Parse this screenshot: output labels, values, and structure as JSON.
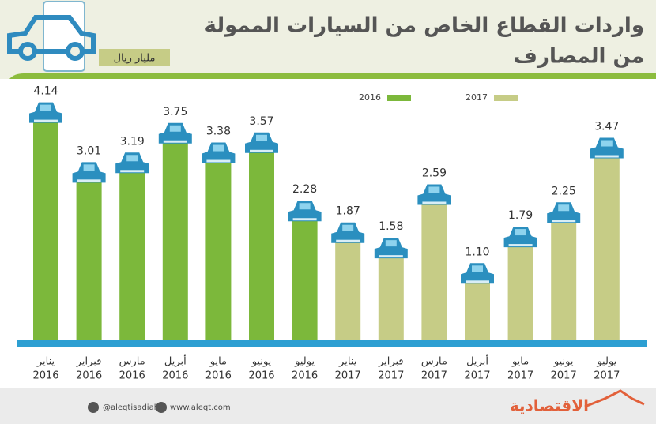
{
  "chart_data": {
    "type": "bar",
    "title": [
      "واردات القطاع الخاص من السيارات الممولة",
      "من المصارف"
    ],
    "subtitle": "مليار ريال",
    "categories": [
      [
        "يناير",
        "2016"
      ],
      [
        "فبراير",
        "2016"
      ],
      [
        "مارس",
        "2016"
      ],
      [
        "أبريل",
        "2016"
      ],
      [
        "مايو",
        "2016"
      ],
      [
        "يونيو",
        "2016"
      ],
      [
        "يوليو",
        "2016"
      ],
      [
        "يناير",
        "2017"
      ],
      [
        "فبراير",
        "2017"
      ],
      [
        "مارس",
        "2017"
      ],
      [
        "أبريل",
        "2017"
      ],
      [
        "مايو",
        "2017"
      ],
      [
        "يونيو",
        "2017"
      ],
      [
        "يوليو",
        "2017"
      ]
    ],
    "series": [
      {
        "name": "2016",
        "color": "#7cb83b",
        "values": [
          4.14,
          3.01,
          3.19,
          3.75,
          3.38,
          3.57,
          2.28,
          null,
          null,
          null,
          null,
          null,
          null,
          null
        ],
        "value_labels": [
          "4.14",
          "3.01",
          "3.19",
          "3.75",
          "3.38",
          "3.57",
          "2.28",
          null,
          null,
          null,
          null,
          null,
          null,
          null
        ]
      },
      {
        "name": "2017",
        "color": "#c6cc86",
        "values": [
          null,
          null,
          null,
          null,
          null,
          null,
          null,
          1.87,
          1.58,
          2.59,
          1.1,
          1.79,
          2.25,
          3.47
        ],
        "value_labels": [
          null,
          null,
          null,
          null,
          null,
          null,
          null,
          "1.87",
          "1.58",
          "2.59",
          "1.10",
          "1.79",
          "2.25",
          "3.47"
        ]
      }
    ]
  },
  "footer": {
    "twitter": "@aleqtisadiah",
    "website": "www.aleqt.com",
    "logo": "الاقتصادية"
  }
}
